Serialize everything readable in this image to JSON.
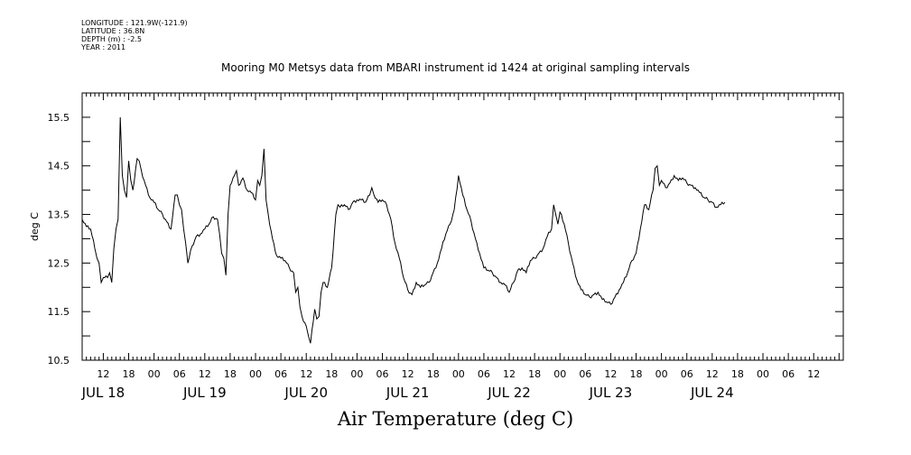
{
  "meta": {
    "longitude": "LONGITUDE : 121.9W(-121.9)",
    "latitude": "LATITUDE : 36.8N",
    "depth": "DEPTH (m) : -2.5",
    "year": "YEAR : 2011"
  },
  "chart_data": {
    "type": "line",
    "title": "Mooring M0 Metsys data from MBARI instrument id 1424 at original sampling intervals",
    "xlabel": "Air Temperature (deg C)",
    "ylabel": "deg C",
    "ylim": [
      10.5,
      16.0
    ],
    "yticks": [
      10.5,
      11.5,
      12.5,
      13.5,
      14.5,
      15.5
    ],
    "ytick_labels": [
      "10.5",
      "11.5",
      "12.5",
      "13.5",
      "14.5",
      "15.5"
    ],
    "xlim": [
      "2011-07-17T07:00",
      "2011-07-24T19:00"
    ],
    "hour_labels": [
      {
        "t": "2011-07-17T12:00",
        "label": "12"
      },
      {
        "t": "2011-07-17T18:00",
        "label": "18"
      },
      {
        "t": "2011-07-18T00:00",
        "label": "00"
      },
      {
        "t": "2011-07-18T06:00",
        "label": "06"
      },
      {
        "t": "2011-07-18T12:00",
        "label": "12"
      },
      {
        "t": "2011-07-18T18:00",
        "label": "18"
      },
      {
        "t": "2011-07-19T00:00",
        "label": "00"
      },
      {
        "t": "2011-07-19T06:00",
        "label": "06"
      },
      {
        "t": "2011-07-19T12:00",
        "label": "12"
      },
      {
        "t": "2011-07-19T18:00",
        "label": "18"
      },
      {
        "t": "2011-07-20T00:00",
        "label": "00"
      },
      {
        "t": "2011-07-20T06:00",
        "label": "06"
      },
      {
        "t": "2011-07-20T12:00",
        "label": "12"
      },
      {
        "t": "2011-07-20T18:00",
        "label": "18"
      },
      {
        "t": "2011-07-21T00:00",
        "label": "00"
      },
      {
        "t": "2011-07-21T06:00",
        "label": "06"
      },
      {
        "t": "2011-07-21T12:00",
        "label": "12"
      },
      {
        "t": "2011-07-21T18:00",
        "label": "18"
      },
      {
        "t": "2011-07-22T00:00",
        "label": "00"
      },
      {
        "t": "2011-07-22T06:00",
        "label": "06"
      },
      {
        "t": "2011-07-22T12:00",
        "label": "12"
      },
      {
        "t": "2011-07-22T18:00",
        "label": "18"
      },
      {
        "t": "2011-07-23T00:00",
        "label": "00"
      },
      {
        "t": "2011-07-23T06:00",
        "label": "06"
      },
      {
        "t": "2011-07-23T12:00",
        "label": "12"
      },
      {
        "t": "2011-07-23T18:00",
        "label": "18"
      },
      {
        "t": "2011-07-24T00:00",
        "label": "00"
      },
      {
        "t": "2011-07-24T06:00",
        "label": "06"
      },
      {
        "t": "2011-07-24T12:00",
        "label": "12"
      }
    ],
    "day_labels": [
      {
        "t": "2011-07-17T12:00",
        "label": "JUL 18"
      },
      {
        "t": "2011-07-18T12:00",
        "label": "JUL 19"
      },
      {
        "t": "2011-07-19T12:00",
        "label": "JUL 20"
      },
      {
        "t": "2011-07-20T12:00",
        "label": "JUL 21"
      },
      {
        "t": "2011-07-21T12:00",
        "label": "JUL 22"
      },
      {
        "t": "2011-07-22T12:00",
        "label": "JUL 23"
      },
      {
        "t": "2011-07-23T12:00",
        "label": "JUL 24"
      }
    ],
    "grid": false,
    "series": [
      {
        "points": [
          [
            "2011-07-17T07:00",
            13.4
          ],
          [
            "2011-07-17T08:00",
            13.25
          ],
          [
            "2011-07-17T09:00",
            13.2
          ],
          [
            "2011-07-17T10:00",
            12.8
          ],
          [
            "2011-07-17T10:30",
            12.6
          ],
          [
            "2011-07-17T11:00",
            12.5
          ],
          [
            "2011-07-17T11:30",
            12.1
          ],
          [
            "2011-07-17T12:00",
            12.2
          ],
          [
            "2011-07-17T13:00",
            12.2
          ],
          [
            "2011-07-17T13:30",
            12.3
          ],
          [
            "2011-07-17T14:00",
            12.1
          ],
          [
            "2011-07-17T14:30",
            12.8
          ],
          [
            "2011-07-17T15:00",
            13.2
          ],
          [
            "2011-07-17T15:30",
            13.4
          ],
          [
            "2011-07-17T16:00",
            15.5
          ],
          [
            "2011-07-17T16:30",
            14.3
          ],
          [
            "2011-07-17T17:00",
            14.0
          ],
          [
            "2011-07-17T17:30",
            13.85
          ],
          [
            "2011-07-17T18:00",
            14.6
          ],
          [
            "2011-07-17T18:30",
            14.2
          ],
          [
            "2011-07-17T19:00",
            14.0
          ],
          [
            "2011-07-17T20:00",
            14.65
          ],
          [
            "2011-07-17T20:30",
            14.6
          ],
          [
            "2011-07-17T21:00",
            14.4
          ],
          [
            "2011-07-17T22:00",
            14.1
          ],
          [
            "2011-07-17T23:00",
            13.85
          ],
          [
            "2011-07-18T00:00",
            13.75
          ],
          [
            "2011-07-18T01:00",
            13.6
          ],
          [
            "2011-07-18T02:00",
            13.5
          ],
          [
            "2011-07-18T03:00",
            13.35
          ],
          [
            "2011-07-18T04:00",
            13.2
          ],
          [
            "2011-07-18T05:00",
            13.9
          ],
          [
            "2011-07-18T05:30",
            13.9
          ],
          [
            "2011-07-18T06:00",
            13.7
          ],
          [
            "2011-07-18T06:30",
            13.6
          ],
          [
            "2011-07-18T07:00",
            13.2
          ],
          [
            "2011-07-18T07:30",
            12.9
          ],
          [
            "2011-07-18T08:00",
            12.5
          ],
          [
            "2011-07-18T09:00",
            12.85
          ],
          [
            "2011-07-18T10:00",
            13.05
          ],
          [
            "2011-07-18T11:00",
            13.1
          ],
          [
            "2011-07-18T12:00",
            13.2
          ],
          [
            "2011-07-18T13:00",
            13.3
          ],
          [
            "2011-07-18T14:00",
            13.45
          ],
          [
            "2011-07-18T15:00",
            13.4
          ],
          [
            "2011-07-18T15:30",
            13.1
          ],
          [
            "2011-07-18T16:00",
            12.7
          ],
          [
            "2011-07-18T16:30",
            12.6
          ],
          [
            "2011-07-18T17:00",
            12.25
          ],
          [
            "2011-07-18T17:30",
            13.5
          ],
          [
            "2011-07-18T18:00",
            14.1
          ],
          [
            "2011-07-18T19:00",
            14.3
          ],
          [
            "2011-07-18T19:30",
            14.4
          ],
          [
            "2011-07-18T20:00",
            14.1
          ],
          [
            "2011-07-18T21:00",
            14.25
          ],
          [
            "2011-07-18T22:00",
            14.0
          ],
          [
            "2011-07-18T23:00",
            13.95
          ],
          [
            "2011-07-19T00:00",
            13.8
          ],
          [
            "2011-07-19T00:30",
            14.2
          ],
          [
            "2011-07-19T01:00",
            14.1
          ],
          [
            "2011-07-19T01:30",
            14.3
          ],
          [
            "2011-07-19T02:00",
            14.85
          ],
          [
            "2011-07-19T02:30",
            13.8
          ],
          [
            "2011-07-19T03:00",
            13.5
          ],
          [
            "2011-07-19T04:00",
            13.0
          ],
          [
            "2011-07-19T05:00",
            12.65
          ],
          [
            "2011-07-19T06:00",
            12.6
          ],
          [
            "2011-07-19T07:00",
            12.55
          ],
          [
            "2011-07-19T08:00",
            12.4
          ],
          [
            "2011-07-19T09:00",
            12.3
          ],
          [
            "2011-07-19T09:30",
            11.9
          ],
          [
            "2011-07-19T10:00",
            12.0
          ],
          [
            "2011-07-19T10:30",
            11.6
          ],
          [
            "2011-07-19T11:00",
            11.4
          ],
          [
            "2011-07-19T12:00",
            11.2
          ],
          [
            "2011-07-19T12:30",
            11.0
          ],
          [
            "2011-07-19T13:00",
            10.85
          ],
          [
            "2011-07-19T14:00",
            11.55
          ],
          [
            "2011-07-19T14:30",
            11.35
          ],
          [
            "2011-07-19T15:00",
            11.4
          ],
          [
            "2011-07-19T15:30",
            11.9
          ],
          [
            "2011-07-19T16:00",
            12.1
          ],
          [
            "2011-07-19T17:00",
            12.0
          ],
          [
            "2011-07-19T18:00",
            12.4
          ],
          [
            "2011-07-19T19:00",
            13.5
          ],
          [
            "2011-07-19T19:30",
            13.7
          ],
          [
            "2011-07-19T20:00",
            13.65
          ],
          [
            "2011-07-19T21:00",
            13.7
          ],
          [
            "2011-07-19T22:00",
            13.6
          ],
          [
            "2011-07-19T23:00",
            13.75
          ],
          [
            "2011-07-20T00:00",
            13.8
          ],
          [
            "2011-07-20T01:00",
            13.8
          ],
          [
            "2011-07-20T02:00",
            13.75
          ],
          [
            "2011-07-20T03:00",
            13.9
          ],
          [
            "2011-07-20T03:30",
            14.05
          ],
          [
            "2011-07-20T04:00",
            13.9
          ],
          [
            "2011-07-20T05:00",
            13.75
          ],
          [
            "2011-07-20T06:00",
            13.8
          ],
          [
            "2011-07-20T07:00",
            13.7
          ],
          [
            "2011-07-20T08:00",
            13.4
          ],
          [
            "2011-07-20T09:00",
            12.9
          ],
          [
            "2011-07-20T10:00",
            12.6
          ],
          [
            "2011-07-20T11:00",
            12.2
          ],
          [
            "2011-07-20T12:00",
            11.95
          ],
          [
            "2011-07-20T13:00",
            11.85
          ],
          [
            "2011-07-20T14:00",
            12.1
          ],
          [
            "2011-07-20T15:00",
            12.0
          ],
          [
            "2011-07-20T16:00",
            12.05
          ],
          [
            "2011-07-20T17:00",
            12.1
          ],
          [
            "2011-07-20T18:00",
            12.3
          ],
          [
            "2011-07-20T19:00",
            12.5
          ],
          [
            "2011-07-20T20:00",
            12.8
          ],
          [
            "2011-07-20T21:00",
            13.1
          ],
          [
            "2011-07-20T22:00",
            13.3
          ],
          [
            "2011-07-20T23:00",
            13.6
          ],
          [
            "2011-07-21T00:00",
            14.3
          ],
          [
            "2011-07-21T01:00",
            13.9
          ],
          [
            "2011-07-21T02:00",
            13.6
          ],
          [
            "2011-07-21T03:00",
            13.35
          ],
          [
            "2011-07-21T04:00",
            13.0
          ],
          [
            "2011-07-21T05:00",
            12.7
          ],
          [
            "2011-07-21T06:00",
            12.4
          ],
          [
            "2011-07-21T07:00",
            12.35
          ],
          [
            "2011-07-21T08:00",
            12.3
          ],
          [
            "2011-07-21T09:00",
            12.2
          ],
          [
            "2011-07-21T10:00",
            12.1
          ],
          [
            "2011-07-21T11:00",
            12.05
          ],
          [
            "2011-07-21T12:00",
            11.9
          ],
          [
            "2011-07-21T13:00",
            12.1
          ],
          [
            "2011-07-21T14:00",
            12.35
          ],
          [
            "2011-07-21T15:00",
            12.4
          ],
          [
            "2011-07-21T16:00",
            12.3
          ],
          [
            "2011-07-21T17:00",
            12.55
          ],
          [
            "2011-07-21T18:00",
            12.6
          ],
          [
            "2011-07-21T19:00",
            12.7
          ],
          [
            "2011-07-21T20:00",
            12.8
          ],
          [
            "2011-07-21T21:00",
            13.05
          ],
          [
            "2011-07-21T22:00",
            13.2
          ],
          [
            "2011-07-21T22:30",
            13.7
          ],
          [
            "2011-07-21T23:00",
            13.5
          ],
          [
            "2011-07-21T23:30",
            13.3
          ],
          [
            "2011-07-22T00:00",
            13.55
          ],
          [
            "2011-07-22T01:00",
            13.3
          ],
          [
            "2011-07-22T02:00",
            12.9
          ],
          [
            "2011-07-22T03:00",
            12.5
          ],
          [
            "2011-07-22T04:00",
            12.15
          ],
          [
            "2011-07-22T05:00",
            11.95
          ],
          [
            "2011-07-22T06:00",
            11.85
          ],
          [
            "2011-07-22T07:00",
            11.8
          ],
          [
            "2011-07-22T08:00",
            11.85
          ],
          [
            "2011-07-22T09:00",
            11.9
          ],
          [
            "2011-07-22T10:00",
            11.75
          ],
          [
            "2011-07-22T11:00",
            11.7
          ],
          [
            "2011-07-22T12:00",
            11.65
          ],
          [
            "2011-07-22T13:00",
            11.8
          ],
          [
            "2011-07-22T14:00",
            11.95
          ],
          [
            "2011-07-22T15:00",
            12.1
          ],
          [
            "2011-07-22T16:00",
            12.3
          ],
          [
            "2011-07-22T17:00",
            12.55
          ],
          [
            "2011-07-22T18:00",
            12.7
          ],
          [
            "2011-07-22T19:00",
            13.2
          ],
          [
            "2011-07-22T20:00",
            13.7
          ],
          [
            "2011-07-22T21:00",
            13.6
          ],
          [
            "2011-07-22T22:00",
            14.0
          ],
          [
            "2011-07-22T22:30",
            14.45
          ],
          [
            "2011-07-22T23:00",
            14.5
          ],
          [
            "2011-07-22T23:30",
            14.1
          ],
          [
            "2011-07-23T00:00",
            14.2
          ],
          [
            "2011-07-23T01:00",
            14.05
          ],
          [
            "2011-07-23T02:00",
            14.15
          ],
          [
            "2011-07-23T03:00",
            14.3
          ],
          [
            "2011-07-23T04:00",
            14.2
          ],
          [
            "2011-07-23T05:00",
            14.25
          ],
          [
            "2011-07-23T06:00",
            14.15
          ],
          [
            "2011-07-23T07:00",
            14.1
          ],
          [
            "2011-07-23T08:00",
            14.05
          ],
          [
            "2011-07-23T09:00",
            13.95
          ],
          [
            "2011-07-23T10:00",
            13.85
          ],
          [
            "2011-07-23T11:00",
            13.8
          ],
          [
            "2011-07-23T12:00",
            13.75
          ],
          [
            "2011-07-23T13:00",
            13.65
          ],
          [
            "2011-07-23T14:00",
            13.7
          ],
          [
            "2011-07-23T15:00",
            13.75
          ]
        ]
      }
    ]
  }
}
